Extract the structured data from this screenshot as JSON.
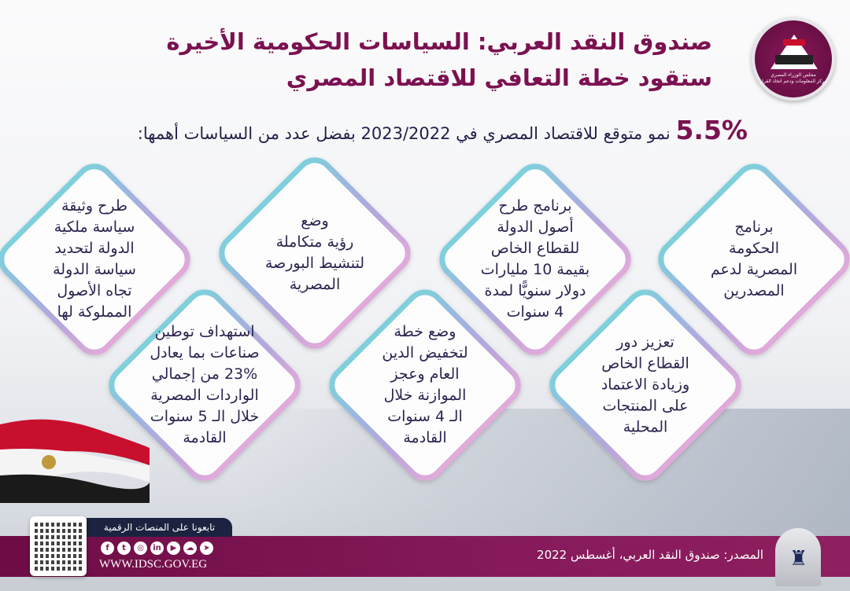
{
  "header": {
    "title_line1": "صندوق النقد العربي: السياسات الحكومية الأخيرة",
    "title_line2": "ستقود خطة التعافي للاقتصاد المصري",
    "logo_text_line1": "مجلس الوزراء المصري",
    "logo_text_line2": "مركز المعلومات ودعم اتخاذ القرار"
  },
  "subtitle": {
    "percent": "5.5%",
    "text": "نمو متوقع للاقتصاد المصري في 2023/2022 بفضل عدد من السياسات أهمها:"
  },
  "colors": {
    "brand": "#7b1150",
    "text": "#2a2650",
    "diamond_right": "#d9a6d6",
    "diamond_left": "#7fcfdc"
  },
  "policies_top": [
    {
      "lines": [
        "برنامج",
        "الحكومة",
        "المصرية لدعم",
        "المصدرين"
      ]
    },
    {
      "lines": [
        "برنامج طرح",
        "أصول الدولة",
        "للقطاع الخاص",
        "بقيمة 10 مليارات",
        "دولار سنويًّا لمدة",
        "4 سنوات"
      ]
    },
    {
      "lines": [
        "وضع",
        "رؤية متكاملة",
        "لتنشيط البورصة",
        "المصرية"
      ]
    },
    {
      "lines": [
        "طرح وثيقة",
        "سياسة ملكية",
        "الدولة لتحديد",
        "سياسة الدولة",
        "تجاه الأصول",
        "المملوكة لها"
      ]
    }
  ],
  "policies_bottom": [
    {
      "lines": [
        "تعزيز دور",
        "القطاع الخاص",
        "وزيادة الاعتماد",
        "على المنتجات",
        "المحلية"
      ]
    },
    {
      "lines": [
        "وضع خطة",
        "لتخفيض الدين",
        "العام وعجز",
        "الموازنة خلال",
        "الـ 4 سنوات",
        "القادمة"
      ]
    },
    {
      "lines": [
        "استهداف توطين",
        "صناعات بما يعادل",
        "23% من إجمالي",
        "الواردات المصرية",
        "خلال الـ 5 سنوات",
        "القادمة"
      ]
    }
  ],
  "footer": {
    "follow_label": "تابعونا على المنصات الرقمية",
    "social_icons": [
      "facebook-icon",
      "twitter-icon",
      "instagram-icon",
      "linkedin-icon",
      "youtube-icon",
      "soundcloud-icon",
      "telegram-icon"
    ],
    "social_glyphs": [
      "f",
      "t",
      "◎",
      "in",
      "▶",
      "☁",
      "➤"
    ],
    "url": "WWW.IDSC.GOV.EG",
    "source": "المصدر: صندوق النقد العربي، أغسطس 2022"
  }
}
